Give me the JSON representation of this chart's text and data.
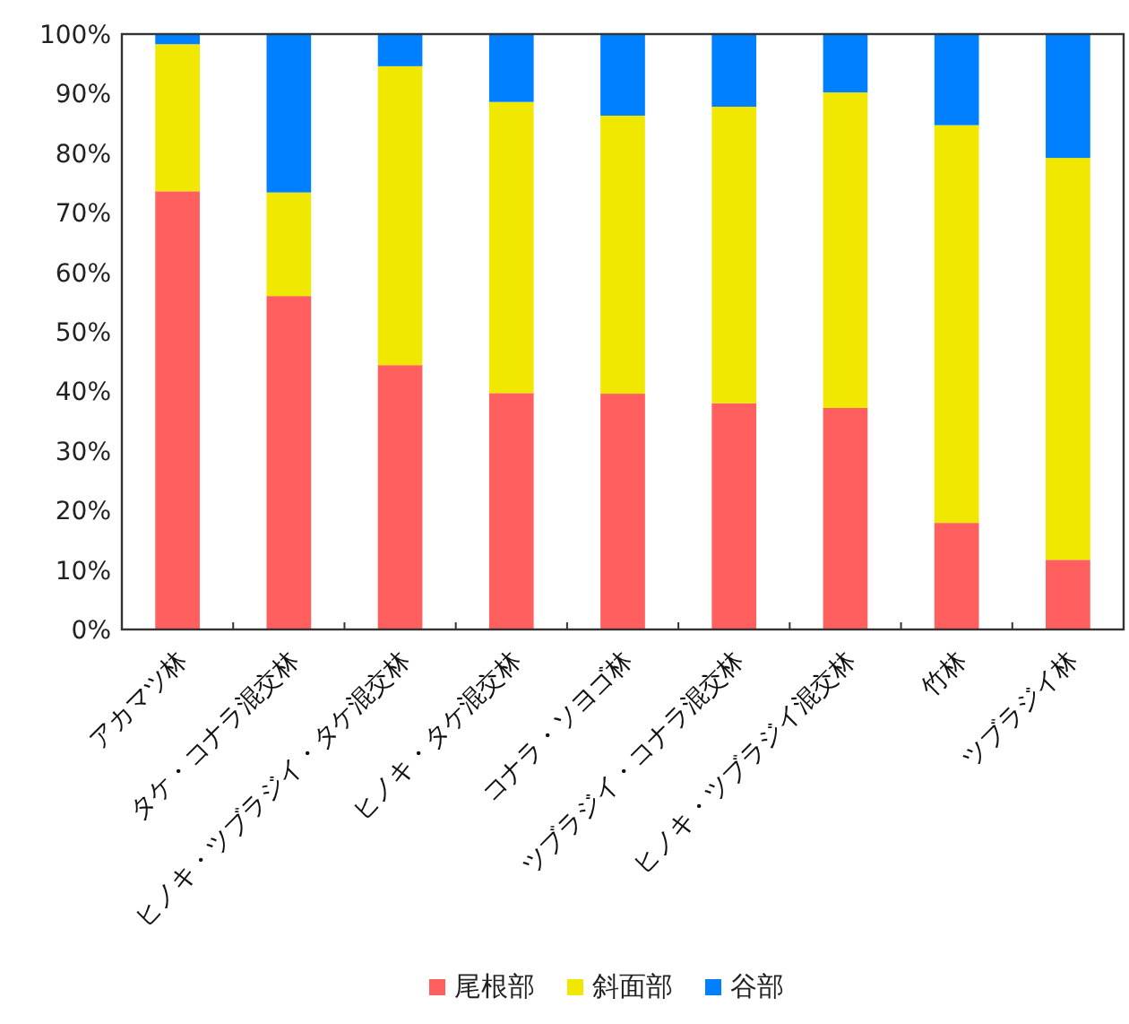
{
  "chart_data": {
    "type": "bar",
    "stacked": true,
    "legend": "bottom",
    "categories": [
      "アカマツ林",
      "タケ・コナラ混交林",
      "ヒノキ・ツブラジイ・タケ混交林",
      "ヒノキ・タケ混交林",
      "コナラ・ソヨゴ林",
      "ツブラジイ・コナラ混交林",
      "ヒノキ・ツブラジイ混交林",
      "竹林",
      "ツブラジイ林"
    ],
    "series": [
      {
        "name": "尾根部",
        "color": "#ff5f5f",
        "values": [
          73.6,
          56.0,
          44.4,
          39.7,
          39.6,
          38.0,
          37.2,
          17.9,
          11.7
        ]
      },
      {
        "name": "斜面部",
        "color": "#f0e800",
        "values": [
          24.7,
          17.4,
          50.2,
          48.9,
          46.7,
          49.8,
          53.0,
          66.8,
          67.5
        ]
      },
      {
        "name": "谷部",
        "color": "#0080ff",
        "values": [
          1.7,
          26.6,
          5.4,
          11.4,
          13.7,
          12.2,
          9.8,
          15.3,
          20.8
        ]
      }
    ],
    "ylim": [
      0,
      100
    ],
    "yticks": [
      {
        "value": 0,
        "label": "0%"
      },
      {
        "value": 10,
        "label": "10%"
      },
      {
        "value": 20,
        "label": "20%"
      },
      {
        "value": 30,
        "label": "30%"
      },
      {
        "value": 40,
        "label": "40%"
      },
      {
        "value": 50,
        "label": "50%"
      },
      {
        "value": 60,
        "label": "60%"
      },
      {
        "value": 70,
        "label": "70%"
      },
      {
        "value": 80,
        "label": "80%"
      },
      {
        "value": 90,
        "label": "90%"
      },
      {
        "value": 100,
        "label": "100%"
      }
    ]
  }
}
